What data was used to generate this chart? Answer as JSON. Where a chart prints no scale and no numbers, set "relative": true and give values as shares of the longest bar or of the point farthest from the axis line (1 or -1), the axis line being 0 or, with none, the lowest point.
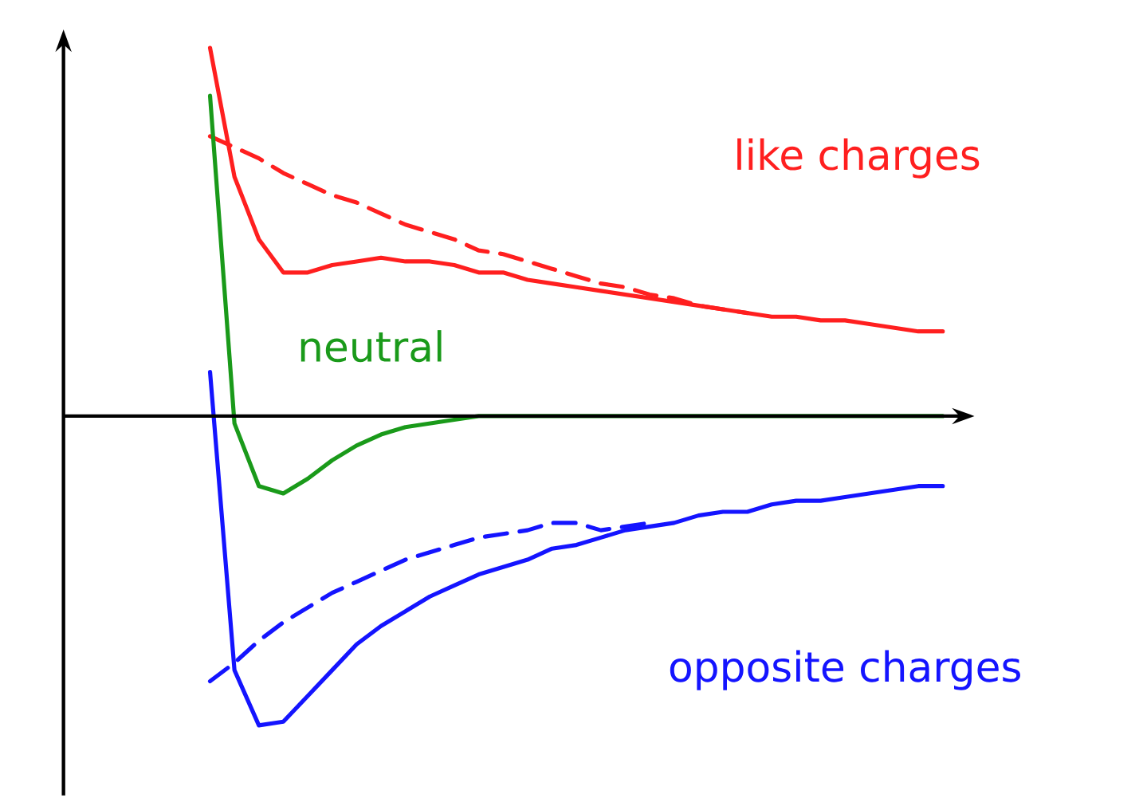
{
  "chart_data": {
    "type": "line",
    "relative": true,
    "categories": [
      null,
      null,
      null,
      null,
      null,
      null,
      null,
      null,
      null,
      null,
      null,
      null,
      null,
      null,
      null,
      null,
      null,
      null,
      null,
      null,
      null,
      null,
      null,
      null,
      null,
      null,
      null,
      null,
      null,
      null,
      null
    ],
    "series": [
      {
        "name": "like charges",
        "color": "#ff1f1f",
        "line_style": "solid",
        "values": [
          1.0,
          0.65,
          0.48,
          0.39,
          0.39,
          0.41,
          0.42,
          0.43,
          0.42,
          0.42,
          0.41,
          0.39,
          0.39,
          0.37,
          0.36,
          0.35,
          0.34,
          0.33,
          0.32,
          0.31,
          0.3,
          0.29,
          0.28,
          0.27,
          0.27,
          0.26,
          0.26,
          0.25,
          0.24,
          0.23,
          0.23
        ]
      },
      {
        "color": "#ff1f1f",
        "line_style": "dashed",
        "values": [
          0.76,
          0.73,
          0.7,
          0.66,
          0.63,
          0.6,
          0.58,
          0.55,
          0.52,
          0.5,
          0.48,
          0.45,
          0.44,
          0.42,
          0.4,
          0.38,
          0.36,
          0.35,
          0.33,
          0.32,
          0.3,
          0.29,
          0.28,
          null,
          null,
          null,
          null,
          null,
          null,
          null,
          null
        ]
      },
      {
        "name": "neutral",
        "color": "#1a9a1a",
        "line_style": "solid",
        "values": [
          0.87,
          -0.02,
          -0.19,
          -0.21,
          -0.17,
          -0.12,
          -0.08,
          -0.05,
          -0.03,
          -0.02,
          -0.01,
          0,
          0,
          0,
          0,
          0,
          0,
          0,
          0,
          0,
          0,
          0,
          0,
          0,
          0,
          0,
          0,
          0,
          0,
          0,
          0
        ]
      },
      {
        "name": "opposite charges",
        "color": "#1414ff",
        "line_style": "solid",
        "values": [
          0.12,
          -0.69,
          -0.84,
          -0.83,
          -0.76,
          -0.69,
          -0.62,
          -0.57,
          -0.53,
          -0.49,
          -0.46,
          -0.43,
          -0.41,
          -0.39,
          -0.36,
          -0.35,
          -0.33,
          -0.31,
          -0.3,
          -0.29,
          -0.27,
          -0.26,
          -0.26,
          -0.24,
          -0.23,
          -0.23,
          -0.22,
          -0.21,
          -0.2,
          -0.19,
          -0.19
        ]
      },
      {
        "color": "#1414ff",
        "line_style": "dashed",
        "values": [
          -0.72,
          -0.67,
          -0.61,
          -0.56,
          -0.52,
          -0.48,
          -0.45,
          -0.42,
          -0.39,
          -0.37,
          -0.35,
          -0.33,
          -0.32,
          -0.31,
          -0.29,
          -0.29,
          -0.31,
          -0.3,
          -0.29,
          null,
          null,
          null,
          null,
          null,
          null,
          null,
          null,
          null,
          null,
          null,
          null
        ]
      }
    ]
  }
}
